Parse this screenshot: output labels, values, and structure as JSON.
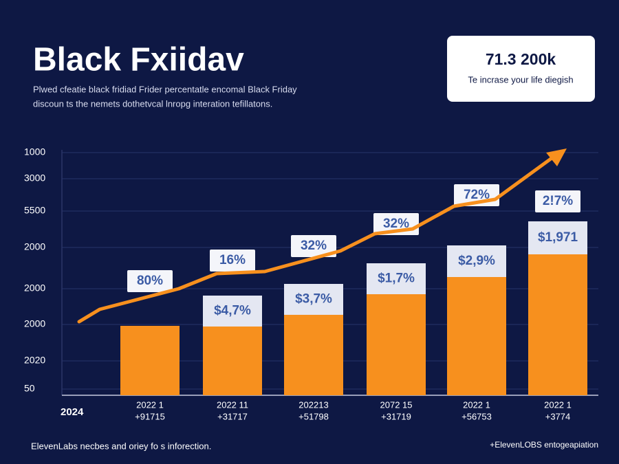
{
  "header": {
    "title": "Black Fxiidav",
    "subtitle_lines": [
      "Plwed cfeatie black fridiad Frider percentatle encomal Black Friday",
      "discoun ts the nemets dothetvcal lnropg interation tefillatons."
    ]
  },
  "callout": {
    "value": "71.3 200k",
    "text": "Te incrase your life diegish"
  },
  "axis": {
    "y_labels": [
      "1000",
      "3000",
      "5500",
      "2000",
      "2000",
      "2000",
      "2020",
      "50"
    ],
    "corner_label": "2024"
  },
  "columns": [
    {
      "percent": "80%",
      "label_lines": [
        "2022 1",
        "+91715"
      ]
    },
    {
      "percent": "16%",
      "amount": "$4,7%",
      "label_lines": [
        "2022 11",
        "+31717"
      ]
    },
    {
      "percent": "32%",
      "amount": "$3,7%",
      "label_lines": [
        "202213",
        "+51798"
      ]
    },
    {
      "percent": "32%",
      "amount": "$1,7%",
      "label_lines": [
        "2072 15",
        "+31719"
      ]
    },
    {
      "percent": "72%",
      "amount": "$2,9%",
      "label_lines": [
        "2022 1",
        "+56753"
      ]
    },
    {
      "percent": "2!7%",
      "amount": "$1,971",
      "label_lines": [
        "2022 1",
        "+3774"
      ]
    }
  ],
  "footer": {
    "left": "ElevenLabs necbes and oriey fo s inforection.",
    "right": "+ElevenLOBS entogeapiation"
  }
}
